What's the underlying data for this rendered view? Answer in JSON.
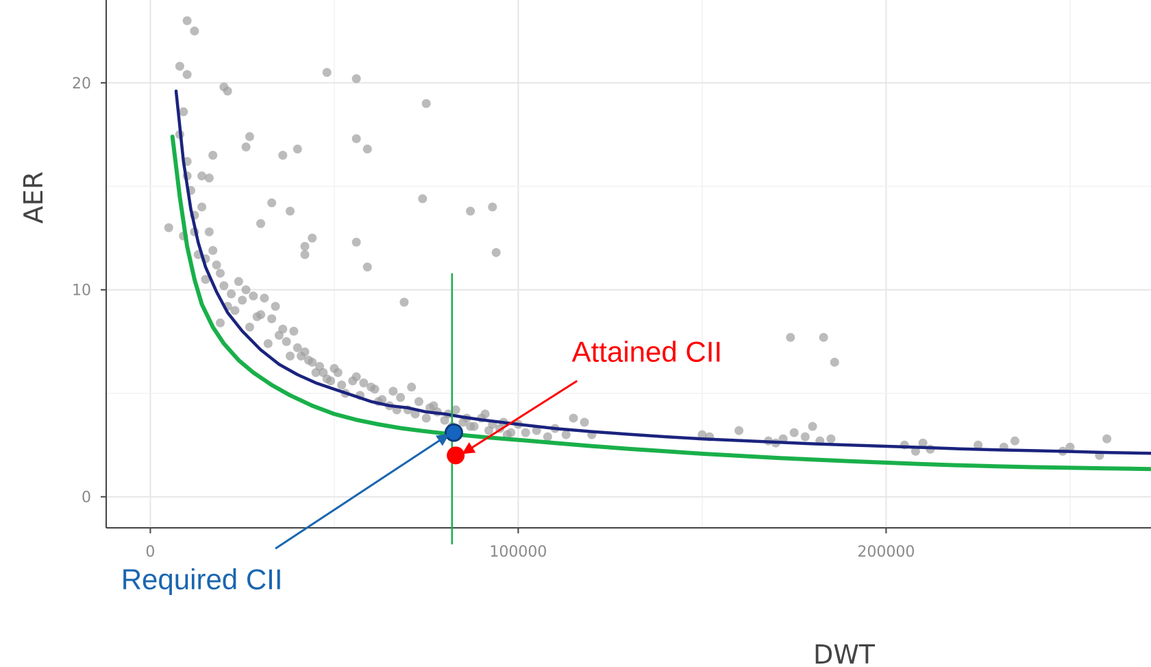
{
  "chart_data": {
    "type": "scatter",
    "xlabel": "DWT",
    "ylabel": "AER",
    "xlim": [
      -12000,
      272000
    ],
    "ylim": [
      -1.5,
      24
    ],
    "x_ticks": [
      0,
      100000,
      200000
    ],
    "x_tick_labels": [
      "0",
      "100000",
      "200000"
    ],
    "y_ticks": [
      0,
      10,
      20
    ],
    "y_tick_labels": [
      "0",
      "10",
      "20"
    ],
    "grid": true,
    "legend": "none",
    "colors": {
      "points": "#9e9e9e",
      "reference_line": "#1a237e",
      "required_line": "#19b04a",
      "vertical_marker": "#19b04a",
      "required_point": "#1565c0",
      "attained_point": "#ff0000",
      "required_label": "#1a66b0",
      "attained_label": "#ff0000"
    },
    "series": [
      {
        "type": "scatter",
        "x": [
          5000,
          8000,
          9000,
          10000,
          12000,
          14000,
          15000,
          18000,
          20000,
          22000,
          25000,
          27000,
          30000,
          32000,
          35000,
          38000,
          40000,
          43000,
          45000,
          48000,
          50000,
          52000,
          55000,
          57000,
          60000,
          63000,
          65000,
          68000,
          70000,
          73000,
          75000,
          78000,
          80000,
          83000,
          85000,
          88000,
          90000,
          93000,
          95000,
          98000,
          100000,
          105000,
          110000,
          115000,
          120000,
          150000,
          160000,
          170000,
          175000,
          180000,
          185000,
          205000,
          210000,
          225000,
          235000,
          250000,
          260000,
          9000,
          13000,
          16000,
          21000,
          24000,
          28000,
          33000,
          36000,
          41000,
          46000,
          51000,
          56000,
          61000,
          66000,
          71000,
          76000,
          81000,
          86000,
          91000,
          96000,
          10000,
          11000,
          12000,
          15000,
          17000,
          19000,
          23000,
          26000,
          29000,
          31000,
          34000,
          37000,
          39000,
          42000,
          44000,
          47000,
          49000,
          53000,
          58000,
          62000,
          67000,
          72000,
          77000,
          82000,
          87000,
          92000,
          97000,
          102000,
          108000,
          113000,
          118000,
          152000,
          168000,
          172000,
          178000,
          182000,
          208000,
          212000,
          232000,
          248000,
          258000,
          10000,
          17000,
          56000,
          74000,
          87000,
          94000,
          48000,
          75000,
          93000,
          56000,
          40000,
          36000,
          26000,
          21000,
          12000,
          20000,
          8000,
          10000,
          14000,
          59000,
          56000,
          27000,
          42000,
          30000,
          33000,
          16000,
          19000,
          38000,
          69000,
          44000,
          42000,
          59000,
          174000,
          183000,
          186000
        ],
        "y": [
          13.0,
          17.5,
          18.6,
          15.5,
          12.8,
          14.0,
          10.5,
          11.2,
          10.2,
          9.8,
          9.5,
          8.2,
          8.8,
          7.4,
          7.8,
          6.8,
          7.2,
          6.6,
          6.0,
          5.7,
          6.2,
          5.4,
          5.6,
          4.9,
          5.3,
          4.7,
          4.4,
          4.8,
          4.2,
          4.6,
          3.8,
          4.1,
          3.7,
          4.2,
          3.6,
          3.4,
          3.8,
          3.5,
          3.3,
          3.1,
          3.5,
          3.2,
          3.3,
          3.8,
          3.0,
          3.0,
          3.2,
          2.6,
          3.1,
          3.4,
          2.8,
          2.5,
          2.6,
          2.5,
          2.7,
          2.4,
          2.8,
          12.6,
          11.7,
          12.8,
          9.2,
          10.4,
          9.7,
          8.6,
          8.1,
          6.8,
          6.3,
          6.0,
          5.8,
          5.2,
          5.1,
          5.3,
          4.3,
          4.0,
          3.8,
          4.0,
          3.6,
          16.2,
          14.8,
          13.6,
          11.5,
          11.9,
          10.8,
          9.0,
          10.0,
          8.7,
          9.6,
          9.2,
          7.5,
          8.0,
          7.0,
          6.5,
          6.0,
          5.6,
          5.0,
          5.5,
          4.6,
          4.2,
          4.0,
          4.4,
          3.4,
          3.4,
          3.2,
          3.0,
          3.1,
          2.9,
          3.0,
          3.6,
          2.9,
          2.7,
          2.8,
          2.9,
          2.7,
          2.2,
          2.3,
          2.4,
          2.2,
          2.0,
          23.0,
          16.5,
          12.3,
          14.4,
          13.8,
          11.8,
          20.5,
          19.0,
          14.0,
          20.2,
          16.8,
          16.5,
          16.9,
          19.6,
          22.5,
          19.8,
          20.8,
          20.4,
          15.5,
          16.8,
          17.3,
          17.4,
          11.7,
          13.2,
          14.2,
          15.4,
          8.4,
          13.8,
          9.4,
          12.5,
          12.1,
          11.1,
          7.7,
          7.7,
          6.5
        ]
      },
      {
        "type": "line",
        "x": [
          7000,
          9000,
          11000,
          13000,
          15000,
          18000,
          21000,
          25000,
          30000,
          35000,
          40000,
          45000,
          50000,
          55000,
          60000,
          65000,
          70000,
          75000,
          80000,
          85000,
          90000,
          95000,
          100000,
          110000,
          120000,
          130000,
          140000,
          150000,
          160000,
          170000,
          180000,
          190000,
          200000,
          210000,
          220000,
          230000,
          240000,
          250000,
          260000,
          272000
        ],
        "y": [
          19.6,
          16.2,
          13.9,
          12.3,
          11.1,
          9.9,
          8.9,
          8.0,
          7.1,
          6.4,
          5.9,
          5.5,
          5.2,
          4.9,
          4.6,
          4.4,
          4.3,
          4.1,
          4.0,
          3.85,
          3.72,
          3.61,
          3.5,
          3.3,
          3.15,
          3.02,
          2.9,
          2.8,
          2.72,
          2.64,
          2.56,
          2.5,
          2.44,
          2.38,
          2.32,
          2.27,
          2.23,
          2.19,
          2.14,
          2.1
        ]
      },
      {
        "type": "line",
        "x": [
          6000,
          8000,
          10000,
          12000,
          14000,
          17000,
          20000,
          24000,
          28000,
          33000,
          38000,
          44000,
          50000,
          56000,
          62000,
          68000,
          74000,
          80000,
          86000,
          92000,
          100000,
          110000,
          120000,
          130000,
          140000,
          150000,
          160000,
          170000,
          180000,
          190000,
          200000,
          210000,
          220000,
          230000,
          240000,
          250000,
          260000,
          272000
        ],
        "y": [
          17.4,
          14.5,
          12.1,
          10.5,
          9.3,
          8.2,
          7.4,
          6.6,
          6.0,
          5.4,
          4.9,
          4.4,
          4.0,
          3.72,
          3.5,
          3.32,
          3.18,
          3.06,
          2.96,
          2.86,
          2.75,
          2.6,
          2.45,
          2.32,
          2.2,
          2.08,
          1.98,
          1.88,
          1.8,
          1.72,
          1.65,
          1.58,
          1.52,
          1.47,
          1.43,
          1.4,
          1.37,
          1.34
        ]
      },
      {
        "type": "vline",
        "x": 82000,
        "y_range": [
          -2.3,
          10.8
        ]
      },
      {
        "type": "point",
        "name": "Required CII",
        "x": 82500,
        "y": 3.1
      },
      {
        "type": "point",
        "name": "Attained CII",
        "x": 83000,
        "y": 2.0
      }
    ],
    "annotations": [
      {
        "text": "Attained CII",
        "x": 135000,
        "y": 7.0,
        "arrow_from": [
          116000,
          5.6
        ],
        "arrow_to": [
          85000,
          2.1
        ]
      },
      {
        "text": "Required CII",
        "x": 14000,
        "y": -4.0,
        "arrow_from": [
          34000,
          -2.5
        ],
        "arrow_to": [
          81000,
          3.0
        ]
      }
    ]
  }
}
